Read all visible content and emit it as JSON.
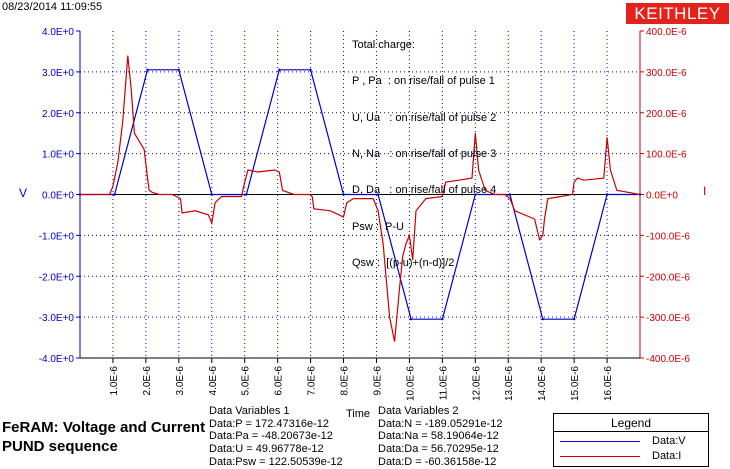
{
  "timestamp": "08/23/2014 11:09:55",
  "logo_text": "KEITHLEY",
  "annotation_lines": [
    "Total charge:",
    "P , Pa  : on rise/fall of pulse 1",
    "U, Ua   : on rise/fall of pulse 2",
    "N, Na   : on rise/fall of pulse 3",
    "D, Da   : on rise/fall of pulse 4",
    "Psw :  P-U",
    "Qsw :  [(p-u)+(n-d)]/2"
  ],
  "title_line1": "FeRAM: Voltage and Current",
  "title_line2": "PUND sequence",
  "data_variables_1": {
    "header": "Data Variables 1",
    "lines": [
      "Data:P = 172.47316e-12",
      "Data:Pa = -48.20673e-12",
      "Data:U = 49.96778e-12",
      "Data:Psw = 122.50539e-12"
    ]
  },
  "data_variables_2": {
    "header": "Data Variables 2",
    "lines": [
      "Data:N = -189.05291e-12",
      "Data:Na = 58.19064e-12",
      "Data:Da = 56.70295e-12",
      "Data:D = -60.36158e-12"
    ]
  },
  "legend": {
    "title": "Legend",
    "items": [
      {
        "label": "Data:V",
        "color": "#0000c8"
      },
      {
        "label": "Data:I",
        "color": "#cc0000"
      }
    ]
  },
  "colors": {
    "voltage": "#0000c8",
    "current": "#cc0000",
    "axis": "#000000",
    "grid": "#0000c8"
  },
  "chart_data": {
    "type": "line",
    "xlabel": "Time",
    "ylabel_left": "V",
    "ylabel_right": "I",
    "xlim": [
      0,
      1.7e-05
    ],
    "ylim_left": [
      -4,
      4
    ],
    "ylim_right": [
      -0.0004,
      0.0004
    ],
    "grid": true,
    "legend_position": "bottom-right",
    "x_tick_labels": [
      "1.0E-6",
      "2.0E-6",
      "3.0E-6",
      "4.0E-6",
      "5.0E-6",
      "6.0E-6",
      "7.0E-6",
      "8.0E-6",
      "9.0E-6",
      "10.0E-6",
      "11.0E-6",
      "12.0E-6",
      "13.0E-6",
      "14.0E-6",
      "15.0E-6",
      "16.0E-6"
    ],
    "y_left_tick_labels": [
      "4.0E+0",
      "3.0E+0",
      "2.0E+0",
      "1.0E+0",
      "0.0E+0",
      "-1.0E+0",
      "-2.0E+0",
      "-3.0E+0",
      "-4.0E+0"
    ],
    "y_right_tick_labels": [
      "400.0E-6",
      "300.0E-6",
      "200.0E-6",
      "100.0E-6",
      "0.0E+0",
      "-100.0E-6",
      "-200.0E-6",
      "-300.0E-6",
      "-400.0E-6"
    ],
    "series": [
      {
        "name": "Data:V",
        "axis": "left",
        "x": [
          0,
          1.05e-06,
          2.05e-06,
          3e-06,
          4e-06,
          5.05e-06,
          6.05e-06,
          7e-06,
          8e-06,
          9.05e-06,
          1.005e-05,
          1.1e-05,
          1.2e-05,
          1.305e-05,
          1.405e-05,
          1.5e-05,
          1.6e-05,
          1.7e-05
        ],
        "y": [
          0,
          0,
          3.05,
          3.05,
          0,
          0,
          3.05,
          3.05,
          0,
          0,
          -3.05,
          -3.05,
          0,
          0,
          -3.05,
          -3.05,
          0,
          0
        ]
      },
      {
        "name": "Data:I",
        "axis": "right",
        "x": [
          0,
          9e-07,
          1e-06,
          1.15e-06,
          1.3e-06,
          1.45e-06,
          1.55e-06,
          1.65e-06,
          1.8e-06,
          1.95e-06,
          2.05e-06,
          2.1e-06,
          2.2e-06,
          2.4e-06,
          2.8e-06,
          3.05e-06,
          3.1e-06,
          3.5e-06,
          3.9e-06,
          4e-06,
          4.1e-06,
          4.3e-06,
          4.9e-06,
          5e-06,
          5.1e-06,
          5.4e-06,
          5.9e-06,
          6.05e-06,
          6.15e-06,
          6.5e-06,
          7e-06,
          7.05e-06,
          7.1e-06,
          7.6e-06,
          8e-06,
          8.1e-06,
          8.3e-06,
          8.9e-06,
          9.05e-06,
          9.2e-06,
          9.4e-06,
          9.55e-06,
          9.7e-06,
          9.8e-06,
          9.9e-06,
          1e-05,
          1.01e-05,
          1.02e-05,
          1.05e-05,
          1.1e-05,
          1.11e-05,
          1.15e-05,
          1.19e-05,
          1.2e-05,
          1.21e-05,
          1.23e-05,
          1.26e-05,
          1.29e-05,
          1.305e-05,
          1.32e-05,
          1.38e-05,
          1.395e-05,
          1.405e-05,
          1.41e-05,
          1.42e-05,
          1.46e-05,
          1.495e-05,
          1.5e-05,
          1.51e-05,
          1.53e-05,
          1.59e-05,
          1.6e-05,
          1.61e-05,
          1.63e-05,
          1.7e-05
        ],
        "y": [
          0,
          0,
          2e-05,
          8e-05,
          0.00018,
          0.00034,
          0.00026,
          0.00015,
          0.00013,
          0.00011,
          4e-05,
          1e-05,
          5e-06,
          0,
          0,
          -1e-05,
          -4.5e-05,
          -4e-05,
          -5e-05,
          -7e-05,
          -2e-05,
          -5e-06,
          -5e-06,
          3e-05,
          6e-05,
          5.5e-05,
          6e-05,
          5.5e-05,
          1e-05,
          0,
          0,
          -5e-06,
          -3.5e-05,
          -4e-05,
          -5.5e-05,
          -2e-05,
          -1e-05,
          -1e-05,
          -4e-05,
          -0.00012,
          -0.0003,
          -0.00036,
          -0.00023,
          -0.00015,
          -0.00012,
          -0.0001,
          -0.00016,
          -4e-05,
          -1e-05,
          -5e-06,
          3e-05,
          3.5e-05,
          4e-05,
          0.00015,
          6e-05,
          1e-05,
          0,
          0,
          -1e-05,
          -4e-05,
          -6e-05,
          -0.00011,
          -0.0001,
          -6e-05,
          -1e-05,
          -5e-06,
          0,
          3e-05,
          4e-05,
          3.5e-05,
          4e-05,
          0.00014,
          6e-05,
          1e-05,
          0
        ]
      }
    ]
  }
}
